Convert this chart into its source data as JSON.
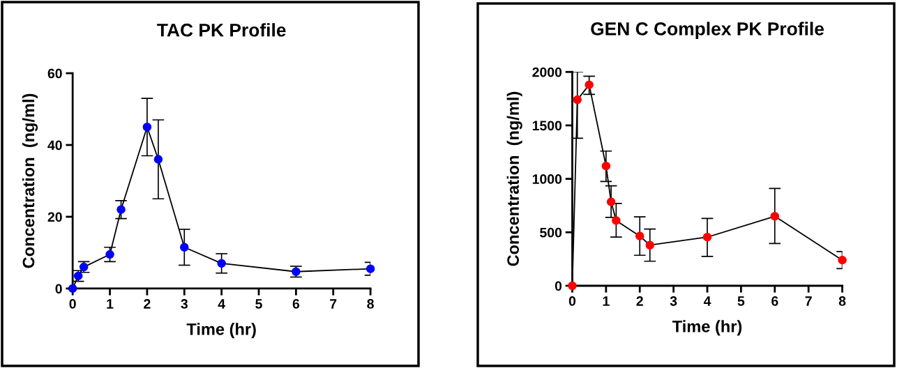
{
  "chart_data": [
    {
      "type": "line",
      "title": "TAC PK Profile",
      "xlabel": "Time (hr)",
      "ylabel": "Concentration  (ng/ml)",
      "x": [
        0,
        0.15,
        0.3,
        1,
        1.3,
        2,
        2.3,
        3,
        4,
        6,
        8
      ],
      "series": [
        {
          "color": "#0000ff",
          "values": [
            0,
            3.5,
            6,
            9.5,
            22,
            45,
            36,
            11.5,
            7,
            4.7,
            5.5
          ],
          "errors": [
            null,
            1.5,
            1.5,
            2,
            2.5,
            8,
            11,
            5,
            2.7,
            1.5,
            1.8
          ]
        }
      ],
      "xlim": [
        0,
        8
      ],
      "xticks": [
        0,
        1,
        2,
        3,
        4,
        5,
        6,
        7,
        8
      ],
      "ylim": [
        0,
        60
      ],
      "yticks": [
        0,
        20,
        40,
        60
      ],
      "marker": "circle",
      "line_style": "solid",
      "grid": false,
      "legend": false
    },
    {
      "type": "line",
      "title": "GEN C Complex PK Profile",
      "xlabel": "Time (hr)",
      "ylabel": "Concentration  (ng/ml)",
      "x": [
        0,
        0.15,
        0.5,
        1,
        1.15,
        1.3,
        2,
        2.3,
        4,
        6,
        8
      ],
      "series": [
        {
          "color": "#ff0000",
          "values": [
            0,
            1740,
            1880,
            1120,
            785,
            610,
            465,
            380,
            455,
            650,
            240
          ],
          "errors": [
            null,
            [
              1380,
              2000
            ],
            [
              1790,
              1960
            ],
            [
              975,
              1260
            ],
            [
              640,
              935
            ],
            [
              455,
              770
            ],
            [
              285,
              645
            ],
            [
              230,
              530
            ],
            [
              275,
              630
            ],
            [
              395,
              910
            ],
            [
              160,
              320
            ]
          ]
        }
      ],
      "xlim": [
        0,
        8
      ],
      "xticks": [
        0,
        1,
        2,
        3,
        4,
        5,
        6,
        7,
        8
      ],
      "ylim": [
        0,
        2000
      ],
      "yticks": [
        0,
        500,
        1000,
        1500,
        2000
      ],
      "marker": "circle",
      "line_style": "solid",
      "grid": false,
      "legend": false
    }
  ]
}
